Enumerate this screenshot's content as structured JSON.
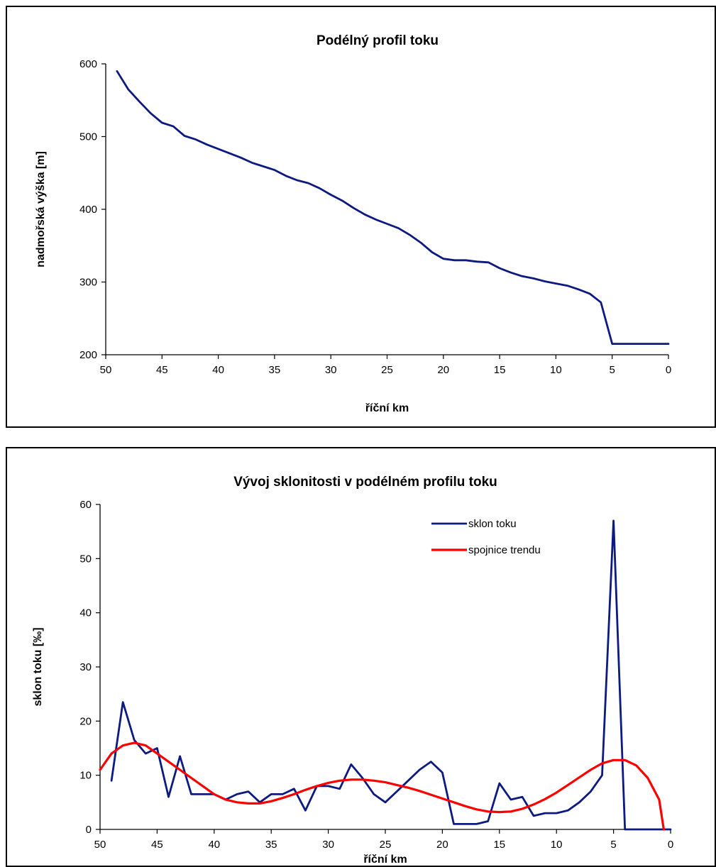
{
  "chart_data": [
    {
      "type": "line",
      "title": "Podélný profil toku",
      "xlabel": "říční km",
      "ylabel": "nadmořská výška [m]",
      "xlim": [
        50,
        0
      ],
      "ylim": [
        200,
        600
      ],
      "x_ticks": [
        "50",
        "45",
        "40",
        "35",
        "30",
        "25",
        "20",
        "15",
        "10",
        "5",
        "0"
      ],
      "y_ticks": [
        "200",
        "300",
        "400",
        "500",
        "600"
      ],
      "grid": false,
      "legend": "none",
      "series": [
        {
          "color": "#0d1a80",
          "x": [
            49,
            48,
            47,
            46,
            45,
            44,
            43,
            42,
            41,
            40,
            39,
            38,
            37,
            36,
            35,
            34,
            33,
            32,
            31,
            30,
            29,
            28,
            27,
            26,
            25,
            24,
            23,
            22,
            21,
            20,
            19,
            18,
            17,
            16,
            15,
            14,
            13,
            12,
            11,
            10,
            9,
            8,
            7,
            6,
            5,
            4,
            3,
            2,
            1,
            0
          ],
          "values": [
            590,
            565,
            548,
            532,
            519,
            514,
            501,
            496,
            489,
            483,
            477,
            471,
            464,
            459,
            454,
            446,
            440,
            436,
            429,
            420,
            412,
            402,
            393,
            386,
            380,
            374,
            365,
            354,
            341,
            332,
            330,
            330,
            328,
            327,
            319,
            313,
            308,
            305,
            301,
            298,
            295,
            290,
            284,
            272,
            215,
            215,
            215,
            215,
            215,
            215
          ]
        }
      ]
    },
    {
      "type": "line",
      "title": "Vývoj sklonitosti v podélném profilu toku",
      "xlabel": "říční km",
      "ylabel": "sklon toku [‰]",
      "xlim": [
        50,
        0
      ],
      "ylim": [
        0,
        60
      ],
      "x_ticks": [
        "50",
        "45",
        "40",
        "35",
        "30",
        "25",
        "20",
        "15",
        "10",
        "5",
        "0"
      ],
      "y_ticks": [
        "0",
        "10",
        "20",
        "30",
        "40",
        "50",
        "60"
      ],
      "grid": false,
      "legend": "top-right",
      "series": [
        {
          "name": "sklon toku",
          "color": "#0d1a80",
          "x": [
            49,
            48,
            47,
            46,
            45,
            44,
            43,
            42,
            41,
            40,
            39,
            38,
            37,
            36,
            35,
            34,
            33,
            32,
            31,
            30,
            29,
            28,
            27,
            26,
            25,
            24,
            23,
            22,
            21,
            20,
            19,
            18,
            17,
            16,
            15,
            14,
            13,
            12,
            11,
            10,
            9,
            8,
            7,
            6,
            5,
            4,
            3,
            2,
            1,
            0
          ],
          "values": [
            9,
            23.5,
            16.5,
            14,
            15,
            6,
            13.5,
            6.5,
            6.5,
            6.5,
            5.5,
            6.5,
            7,
            5,
            6.5,
            6.5,
            7.5,
            3.5,
            8,
            8,
            7.5,
            12,
            9.5,
            6.5,
            5,
            7,
            9,
            11,
            12.5,
            10.5,
            1,
            1,
            1,
            1.5,
            8.5,
            5.5,
            6,
            2.5,
            3,
            3,
            3.5,
            5,
            7,
            10,
            57,
            0,
            0,
            0,
            0,
            0
          ]
        },
        {
          "name": "spojnice trendu",
          "color": "#ff0000",
          "x": [
            50,
            49,
            48,
            47,
            46,
            45,
            44,
            43,
            42,
            41,
            40,
            39,
            38,
            37,
            36,
            35,
            34,
            33,
            32,
            31,
            30,
            29,
            28,
            27,
            26,
            25,
            24,
            23,
            22,
            21,
            20,
            19,
            18,
            17,
            16,
            15,
            14,
            13,
            12,
            11,
            10,
            9,
            8,
            7,
            6,
            5,
            4,
            3,
            2,
            1,
            0.6
          ],
          "values": [
            11,
            14,
            15.5,
            16,
            15.5,
            14,
            12.5,
            11,
            9.5,
            8,
            6.5,
            5.5,
            5,
            4.8,
            4.8,
            5.2,
            5.8,
            6.5,
            7.3,
            8,
            8.6,
            9,
            9.2,
            9.2,
            9,
            8.7,
            8.2,
            7.7,
            7.1,
            6.4,
            5.7,
            5,
            4.3,
            3.7,
            3.3,
            3.2,
            3.3,
            3.8,
            4.6,
            5.6,
            6.8,
            8.2,
            9.6,
            11,
            12.2,
            12.8,
            12.8,
            11.8,
            9.5,
            5.5,
            0
          ]
        }
      ]
    }
  ]
}
